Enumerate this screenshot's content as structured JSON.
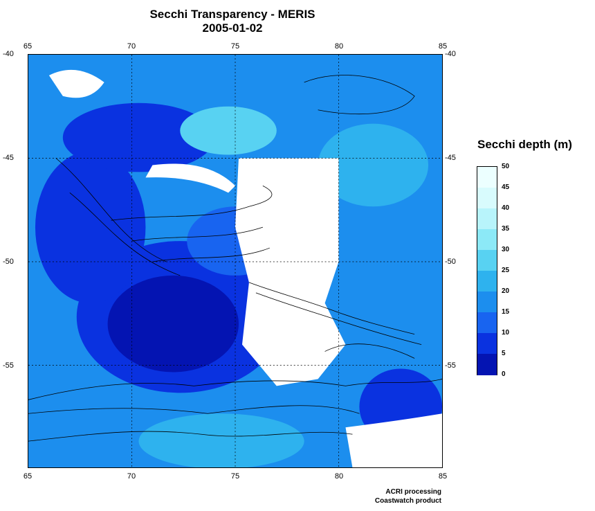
{
  "title": "Secchi Transparency - MERIS",
  "date": "2005-01-02",
  "lon_ticks_top": [
    "65",
    "70",
    "75",
    "80",
    "85"
  ],
  "lon_ticks_bottom": [
    "65",
    "70",
    "75",
    "80",
    "85"
  ],
  "lat_ticks_left": [
    "-40",
    "-45",
    "-50",
    "-55"
  ],
  "lat_ticks_right": [
    "-40",
    "-45",
    "-50",
    "-55"
  ],
  "lon_range": [
    65,
    85
  ],
  "lat_range": [
    -60,
    -40
  ],
  "colorbar": {
    "title": "Secchi depth (m)",
    "labels": [
      "50",
      "45",
      "40",
      "35",
      "30",
      "25",
      "20",
      "15",
      "10",
      "5",
      "0"
    ],
    "colors": [
      "#ecffff",
      "#d8fbfd",
      "#b8f4fb",
      "#8ce9f7",
      "#58d2f2",
      "#2eb2ee",
      "#1c8eee",
      "#1864f0",
      "#0a32e0",
      "#0414b2"
    ]
  },
  "credits": {
    "line1": "ACRI processing",
    "line2": "Coastwatch product"
  }
}
